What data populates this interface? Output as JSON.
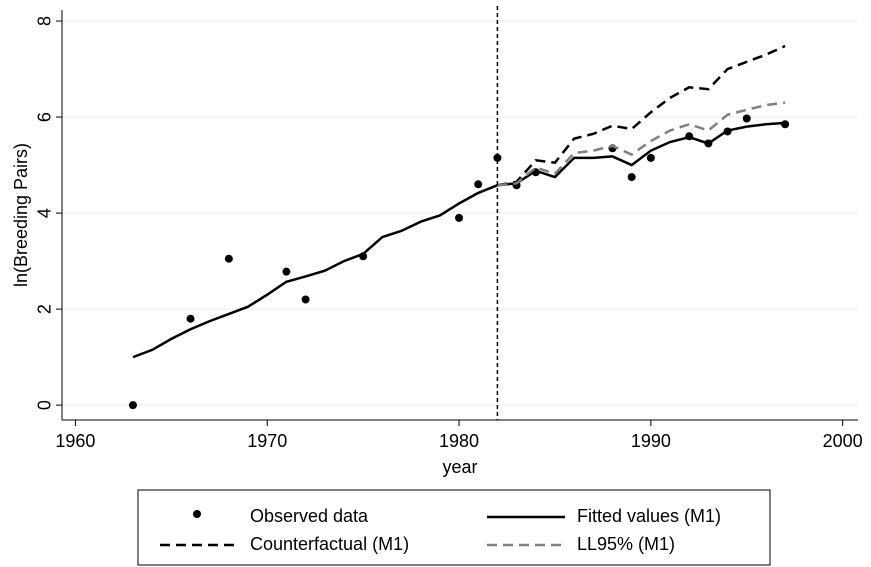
{
  "chart_data": {
    "type": "line",
    "xlabel": "year",
    "ylabel": "ln(Breeding Pairs)",
    "x": [
      1963,
      1964,
      1965,
      1966,
      1967,
      1968,
      1969,
      1970,
      1971,
      1972,
      1973,
      1974,
      1975,
      1976,
      1977,
      1978,
      1979,
      1980,
      1981,
      1982,
      1983,
      1984,
      1985,
      1986,
      1987,
      1988,
      1989,
      1990,
      1991,
      1992,
      1993,
      1994,
      1995,
      1996,
      1997
    ],
    "series": [
      {
        "name": "Observed data",
        "color": "#000000",
        "style": "dot",
        "values": [
          0,
          null,
          null,
          1.8,
          null,
          3.05,
          null,
          null,
          2.78,
          2.2,
          null,
          null,
          3.1,
          null,
          null,
          null,
          null,
          3.9,
          4.6,
          5.15,
          4.58,
          4.85,
          null,
          null,
          null,
          5.35,
          4.75,
          5.15,
          null,
          5.6,
          5.45,
          5.7,
          5.97,
          null,
          5.85
        ]
      },
      {
        "name": "Fitted values (M1)",
        "color": "#000000",
        "style": "solid",
        "values": [
          1.0,
          1.15,
          1.38,
          1.58,
          1.75,
          1.9,
          2.05,
          2.3,
          2.57,
          2.68,
          2.8,
          3.0,
          3.15,
          3.5,
          3.63,
          3.82,
          3.95,
          4.2,
          4.42,
          4.58,
          4.62,
          4.88,
          4.75,
          5.15,
          5.15,
          5.18,
          5.0,
          5.3,
          5.48,
          5.58,
          5.45,
          5.72,
          5.8,
          5.85,
          5.88
        ]
      },
      {
        "name": "Counterfactual (M1)",
        "color": "#000000",
        "style": "dash",
        "values": [
          null,
          null,
          null,
          null,
          null,
          null,
          null,
          null,
          null,
          null,
          null,
          null,
          null,
          null,
          null,
          null,
          null,
          null,
          null,
          4.58,
          4.65,
          5.1,
          5.05,
          5.55,
          5.65,
          5.82,
          5.75,
          6.1,
          6.4,
          6.62,
          6.58,
          7.0,
          7.15,
          7.3,
          7.48
        ]
      },
      {
        "name": "LL95% (M1)",
        "color": "#808080",
        "style": "dash",
        "values": [
          null,
          null,
          null,
          null,
          null,
          null,
          null,
          null,
          null,
          null,
          null,
          null,
          null,
          null,
          null,
          null,
          null,
          null,
          null,
          4.58,
          4.62,
          4.95,
          4.82,
          5.25,
          5.3,
          5.4,
          5.22,
          5.5,
          5.72,
          5.85,
          5.72,
          6.05,
          6.15,
          6.25,
          6.3
        ]
      }
    ],
    "vline": 1982,
    "xlim": [
      1959.3,
      2000.8
    ],
    "ylim": [
      -0.31,
      8.23
    ],
    "xticks": [
      1960,
      1970,
      1980,
      1990,
      2000
    ],
    "yticks": [
      0,
      2,
      4,
      6,
      8
    ],
    "grid": true
  }
}
